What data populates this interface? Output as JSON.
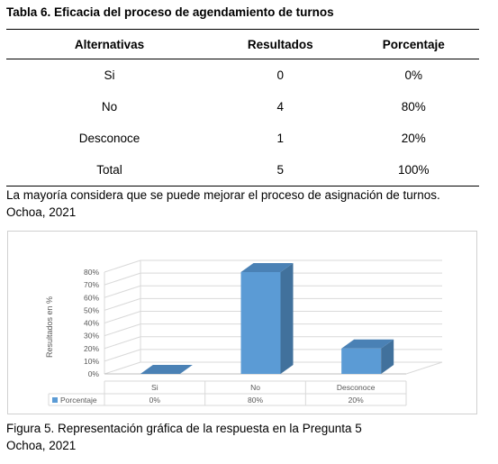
{
  "table": {
    "title": "Tabla 6. Eficacia del proceso de agendamiento de turnos",
    "headers": [
      "Alternativas",
      "Resultados",
      "Porcentaje"
    ],
    "rows": [
      [
        "Si",
        "0",
        "0%"
      ],
      [
        "No",
        "4",
        "80%"
      ],
      [
        "Desconoce",
        "1",
        "20%"
      ],
      [
        "Total",
        "5",
        "100%"
      ]
    ]
  },
  "note": {
    "line1": "La mayoría considera que se puede mejorar el proceso de asignación de turnos.",
    "line2": "Ochoa, 2021"
  },
  "chart_data": {
    "type": "bar",
    "categories": [
      "Si",
      "No",
      "Desconoce"
    ],
    "series": [
      {
        "name": "Porcentaje",
        "values": [
          0,
          80,
          20
        ],
        "value_labels": [
          "0%",
          "80%",
          "20%"
        ]
      }
    ],
    "ylabel": "Resultados en %",
    "yticks": [
      "0%",
      "10%",
      "20%",
      "30%",
      "40%",
      "50%",
      "60%",
      "70%",
      "80%"
    ],
    "ylim": [
      0,
      80
    ],
    "grid": true,
    "legend": "data-table-bottom",
    "color": "#5b9bd5"
  },
  "caption": {
    "line1": "Figura 5. Representación gráfica de la respuesta en la Pregunta 5",
    "line2": "Ochoa, 2021"
  }
}
